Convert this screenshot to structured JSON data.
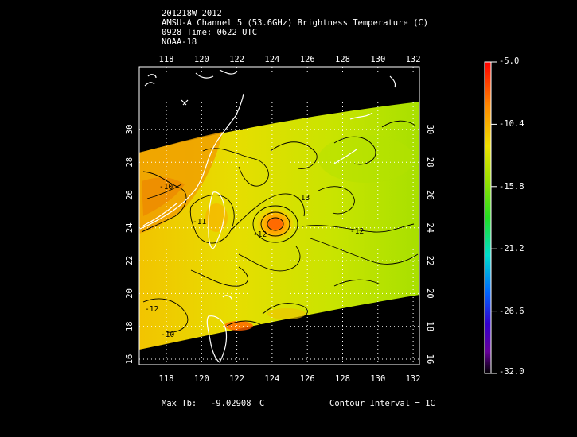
{
  "header": {
    "line1": "201218W 2012",
    "line2": "AMSU-A Channel 5 (53.6GHz) Brightness Temperature (C)",
    "line3": "0928 Time: 0622 UTC",
    "line4": "NOAA-18"
  },
  "axes": {
    "lon_ticks": [
      "118",
      "120",
      "122",
      "124",
      "126",
      "128",
      "130",
      "132"
    ],
    "lat_ticks": [
      "16",
      "18",
      "20",
      "22",
      "24",
      "26",
      "28",
      "30"
    ]
  },
  "contour_labels": [
    "-10",
    "-11",
    "-13",
    "-12",
    "-12",
    "-12",
    "-10"
  ],
  "colorbar": {
    "labels": [
      "-5.0",
      "-10.4",
      "-15.8",
      "-21.2",
      "-26.6",
      "-32.0"
    ],
    "colors": [
      "#ff0000",
      "#ff8800",
      "#f0e000",
      "#99e000",
      "#22dd22",
      "#00ddcc",
      "#0066ff",
      "#3300cc",
      "#660099",
      "#000000"
    ]
  },
  "footer": {
    "max_label": "Max Tb:",
    "max_value": "-9.02908",
    "max_unit": "C",
    "contour_label": "Contour Interval = 1C"
  }
}
